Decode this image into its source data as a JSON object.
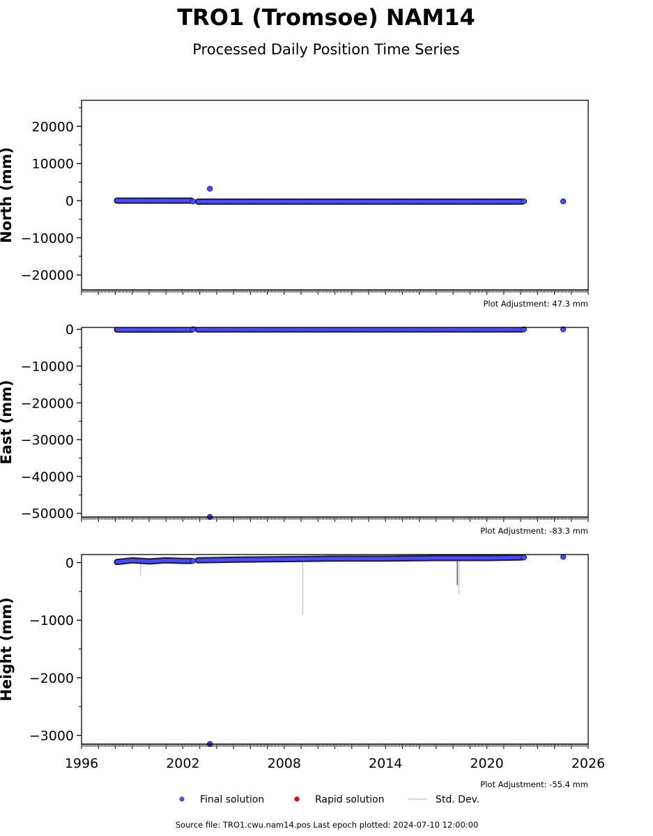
{
  "chart_data": {
    "type": "scatter",
    "title": "TRO1 (Tromsoe) NAM14",
    "subtitle": "Processed Daily Position Time Series",
    "xlim": [
      1996,
      2026
    ],
    "xticks": [
      1996,
      2002,
      2008,
      2014,
      2020,
      2026
    ],
    "legend": {
      "placement": "bottom",
      "entries": [
        "Final solution",
        "Rapid solution",
        "Std. Dev."
      ]
    },
    "colors": {
      "final": "#4d4ded",
      "final_edge": "#1a1a4a",
      "rapid": "#dd0000",
      "stddev": "#cccccc"
    },
    "panels": [
      {
        "ylabel": "North (mm)",
        "ylim": [
          -24000,
          27000
        ],
        "yticks": [
          20000,
          10000,
          0,
          -10000,
          -20000
        ],
        "adjustment": "Plot Adjustment: 47.3 mm",
        "series": [
          {
            "name": "Final solution",
            "x_start": 1998.1,
            "x_end": 2002.5,
            "y": 0
          },
          {
            "name": "Final solution",
            "x_start": 2002.9,
            "x_end": 2022.1,
            "y": -250
          }
        ],
        "points": [
          {
            "x": 2002.6,
            "y": -200
          },
          {
            "x": 2003.6,
            "y": 3200
          },
          {
            "x": 2022.2,
            "y": -180
          },
          {
            "x": 2024.52,
            "y": -200
          }
        ],
        "stddev": []
      },
      {
        "ylabel": "East (mm)",
        "ylim": [
          -51000,
          500
        ],
        "yticks": [
          0,
          -10000,
          -20000,
          -30000,
          -40000,
          -50000
        ],
        "adjustment": "Plot Adjustment: -83.3 mm",
        "series": [
          {
            "name": "Final solution",
            "x_start": 1998.1,
            "x_end": 2002.5,
            "y": -100
          },
          {
            "name": "Final solution",
            "x_start": 2002.9,
            "x_end": 2022.1,
            "y": -50
          }
        ],
        "points": [
          {
            "x": 2002.6,
            "y": 0
          },
          {
            "x": 2003.6,
            "y": -51000
          },
          {
            "x": 2022.2,
            "y": 0
          },
          {
            "x": 2024.52,
            "y": 0
          }
        ],
        "stddev": []
      },
      {
        "ylabel": "Height (mm)",
        "ylim": [
          -3150,
          140
        ],
        "yticks": [
          0,
          -1000,
          -2000,
          -3000
        ],
        "adjustment": "Plot Adjustment: -55.4 mm",
        "series": [
          {
            "name": "Final solution",
            "x": [
              1998.1,
              1999,
              2000,
              2001,
              2002,
              2002.5
            ],
            "y": [
              10,
              40,
              20,
              40,
              30,
              30
            ]
          },
          {
            "name": "Final solution",
            "x": [
              2002.9,
              2005,
              2008,
              2011,
              2014,
              2017,
              2020,
              2022.1
            ],
            "y": [
              40,
              50,
              60,
              70,
              70,
              80,
              80,
              90
            ]
          }
        ],
        "points": [
          {
            "x": 2002.6,
            "y": 30
          },
          {
            "x": 2003.6,
            "y": -3150
          },
          {
            "x": 2022.2,
            "y": 90
          },
          {
            "x": 2024.52,
            "y": 100
          }
        ],
        "stddev": [
          {
            "x": 1999.5,
            "y1": 50,
            "y2": -220
          },
          {
            "x": 2009.1,
            "y1": 40,
            "y2": -900
          },
          {
            "x": 2018.35,
            "y1": 60,
            "y2": -540
          },
          {
            "x": 2018.25,
            "y1": 60,
            "y2": -390
          }
        ]
      }
    ]
  },
  "footer": "Source file: TRO1.cwu.nam14.pos  Last epoch plotted: 2024-07-10 12:00:00"
}
